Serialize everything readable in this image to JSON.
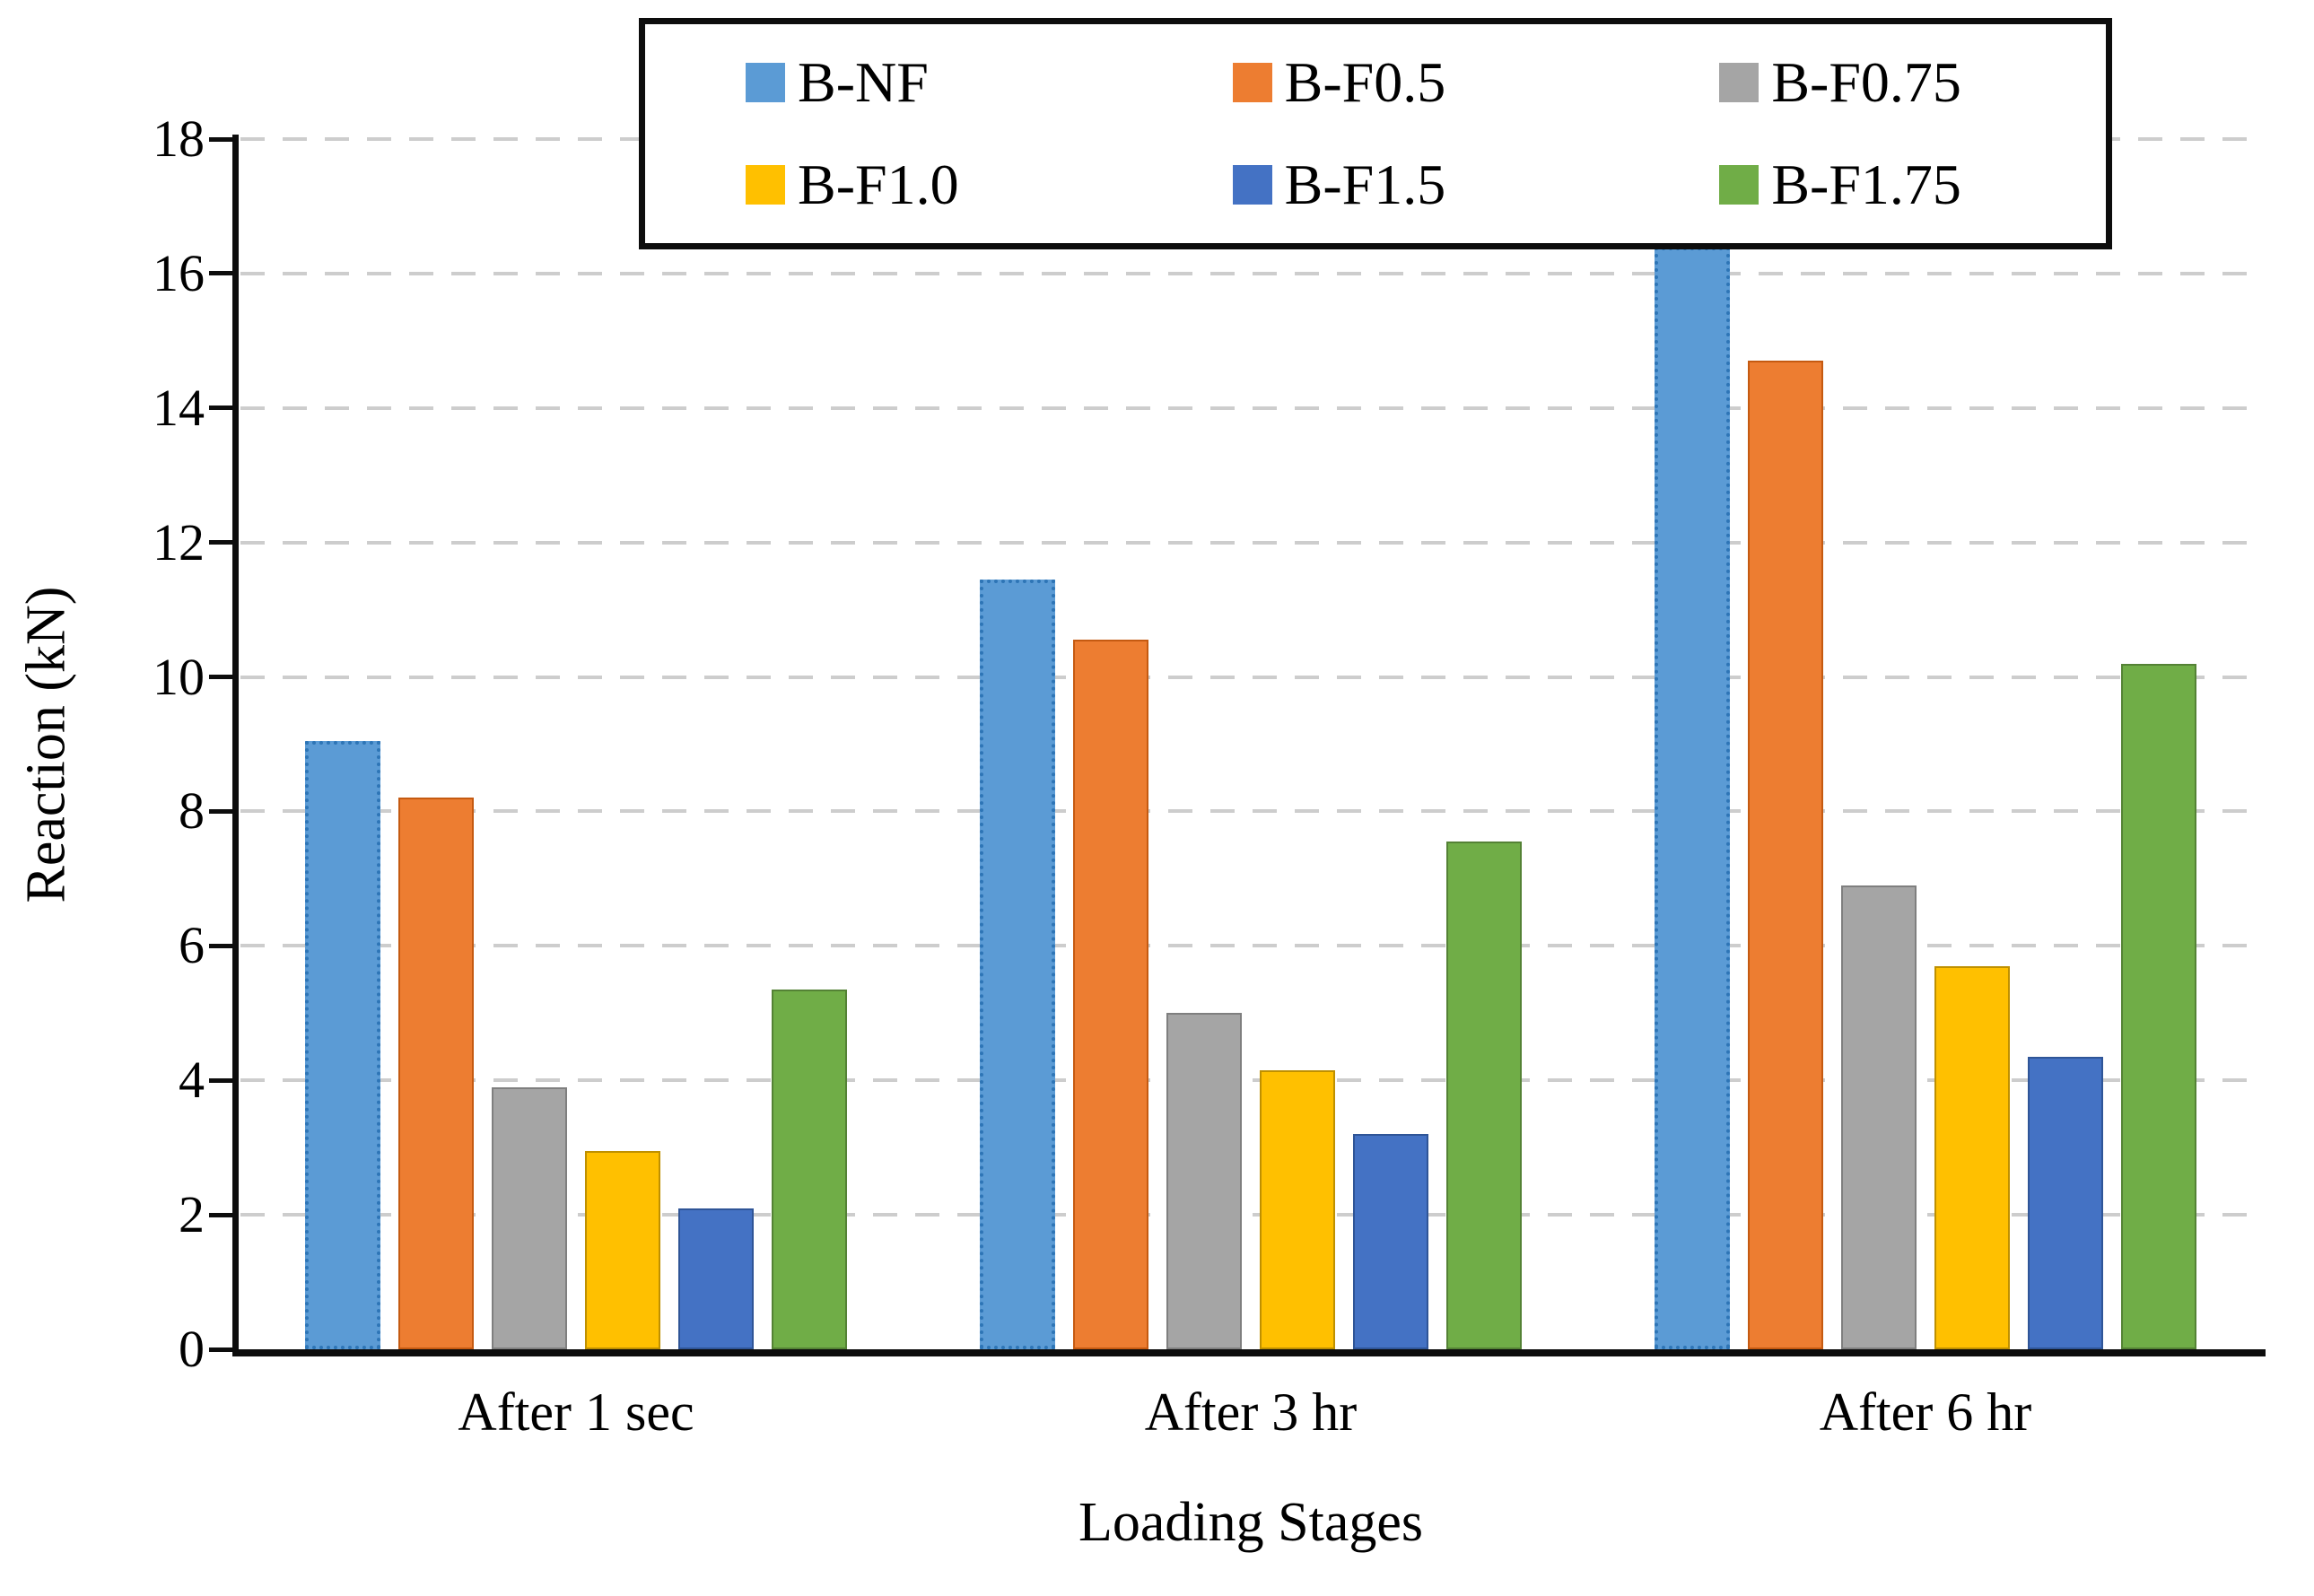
{
  "chart_data": {
    "type": "bar",
    "title": "",
    "xlabel": "Loading Stages",
    "ylabel": "Reaction (kN)",
    "categories": [
      "After 1 sec",
      "After 3 hr",
      "After 6 hr"
    ],
    "series": [
      {
        "name": "B-NF",
        "color": "#5B9BD5",
        "border_color": "#2E75B6",
        "border_style": "dotted",
        "pattern": "none",
        "values": [
          9.05,
          11.45,
          16.4
        ]
      },
      {
        "name": "B-F0.5",
        "color": "#ED7D31",
        "border_color": "#C55A11",
        "border_style": "solid",
        "pattern": "none",
        "values": [
          8.2,
          10.55,
          14.7
        ]
      },
      {
        "name": "B-F0.75",
        "color": "#A5A5A5",
        "border_color": "#7F7F7F",
        "border_style": "solid",
        "pattern": "hatch",
        "values": [
          3.9,
          5.0,
          6.9
        ]
      },
      {
        "name": "B-F1.0",
        "color": "#FFC000",
        "border_color": "#BF9000",
        "border_style": "solid",
        "pattern": "none",
        "values": [
          2.95,
          4.15,
          5.7
        ]
      },
      {
        "name": "B-F1.5",
        "color": "#4472C4",
        "border_color": "#2F5597",
        "border_style": "solid",
        "pattern": "none",
        "values": [
          2.1,
          3.2,
          4.35
        ]
      },
      {
        "name": "B-F1.75",
        "color": "#70AD47",
        "border_color": "#548235",
        "border_style": "solid",
        "pattern": "none",
        "values": [
          5.35,
          7.55,
          10.2
        ]
      }
    ],
    "ylim": [
      0,
      18
    ],
    "yticks": [
      0,
      2,
      4,
      6,
      8,
      10,
      12,
      14,
      16,
      18
    ],
    "grid": "horizontal-dashed",
    "gridline_color": "#CDCDCD",
    "axis_color": "#0D0D0D",
    "legend_position": "top",
    "legend_columns": 3
  }
}
